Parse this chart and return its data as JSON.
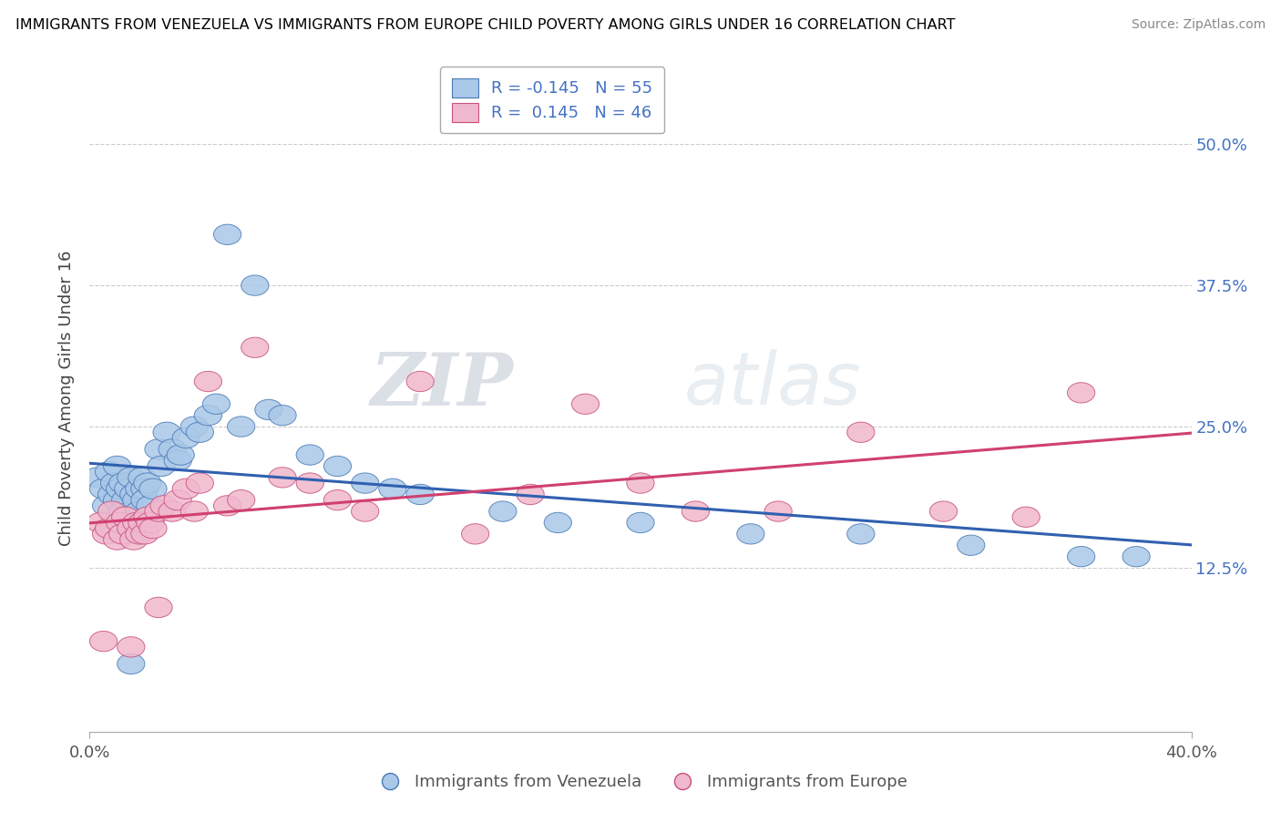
{
  "title": "IMMIGRANTS FROM VENEZUELA VS IMMIGRANTS FROM EUROPE CHILD POVERTY AMONG GIRLS UNDER 16 CORRELATION CHART",
  "source": "Source: ZipAtlas.com",
  "ylabel": "Child Poverty Among Girls Under 16",
  "xlim": [
    0.0,
    0.4
  ],
  "ylim": [
    -0.02,
    0.57
  ],
  "xticks": [
    0.0,
    0.4
  ],
  "xtick_labels": [
    "0.0%",
    "40.0%"
  ],
  "ytick_labels": [
    "12.5%",
    "25.0%",
    "37.5%",
    "50.0%"
  ],
  "ytick_values": [
    0.125,
    0.25,
    0.375,
    0.5
  ],
  "legend1_R": "-0.145",
  "legend1_N": "55",
  "legend2_R": "0.145",
  "legend2_N": "46",
  "blue_fill": "#aac8e8",
  "blue_edge": "#4a7ab5",
  "pink_fill": "#f0b8cc",
  "pink_edge": "#c85080",
  "blue_line": "#3060b0",
  "pink_line": "#d04070",
  "watermark_zip": "ZIP",
  "watermark_atlas": "atlas",
  "blue_scatter_x": [
    0.003,
    0.005,
    0.006,
    0.007,
    0.008,
    0.009,
    0.01,
    0.01,
    0.011,
    0.012,
    0.012,
    0.013,
    0.014,
    0.015,
    0.015,
    0.016,
    0.017,
    0.018,
    0.018,
    0.019,
    0.02,
    0.02,
    0.021,
    0.022,
    0.023,
    0.025,
    0.026,
    0.028,
    0.03,
    0.032,
    0.033,
    0.035,
    0.038,
    0.04,
    0.043,
    0.046,
    0.05,
    0.055,
    0.06,
    0.065,
    0.07,
    0.08,
    0.09,
    0.1,
    0.11,
    0.12,
    0.15,
    0.17,
    0.2,
    0.24,
    0.28,
    0.32,
    0.36,
    0.38,
    0.015
  ],
  "blue_scatter_y": [
    0.205,
    0.195,
    0.18,
    0.21,
    0.19,
    0.2,
    0.185,
    0.215,
    0.195,
    0.175,
    0.2,
    0.185,
    0.195,
    0.205,
    0.175,
    0.19,
    0.185,
    0.195,
    0.175,
    0.205,
    0.195,
    0.185,
    0.2,
    0.18,
    0.195,
    0.23,
    0.215,
    0.245,
    0.23,
    0.22,
    0.225,
    0.24,
    0.25,
    0.245,
    0.26,
    0.27,
    0.42,
    0.25,
    0.375,
    0.265,
    0.26,
    0.225,
    0.215,
    0.2,
    0.195,
    0.19,
    0.175,
    0.165,
    0.165,
    0.155,
    0.155,
    0.145,
    0.135,
    0.135,
    0.04
  ],
  "pink_scatter_x": [
    0.004,
    0.006,
    0.007,
    0.008,
    0.01,
    0.011,
    0.012,
    0.013,
    0.015,
    0.016,
    0.017,
    0.018,
    0.019,
    0.02,
    0.021,
    0.022,
    0.023,
    0.025,
    0.027,
    0.03,
    0.032,
    0.035,
    0.038,
    0.04,
    0.043,
    0.05,
    0.055,
    0.06,
    0.07,
    0.08,
    0.09,
    0.1,
    0.12,
    0.14,
    0.16,
    0.18,
    0.2,
    0.22,
    0.25,
    0.28,
    0.31,
    0.34,
    0.36,
    0.005,
    0.015,
    0.025
  ],
  "pink_scatter_y": [
    0.165,
    0.155,
    0.16,
    0.175,
    0.15,
    0.165,
    0.155,
    0.17,
    0.16,
    0.15,
    0.165,
    0.155,
    0.165,
    0.155,
    0.17,
    0.165,
    0.16,
    0.175,
    0.18,
    0.175,
    0.185,
    0.195,
    0.175,
    0.2,
    0.29,
    0.18,
    0.185,
    0.32,
    0.205,
    0.2,
    0.185,
    0.175,
    0.29,
    0.155,
    0.19,
    0.27,
    0.2,
    0.175,
    0.175,
    0.245,
    0.175,
    0.17,
    0.28,
    0.06,
    0.055,
    0.09
  ]
}
